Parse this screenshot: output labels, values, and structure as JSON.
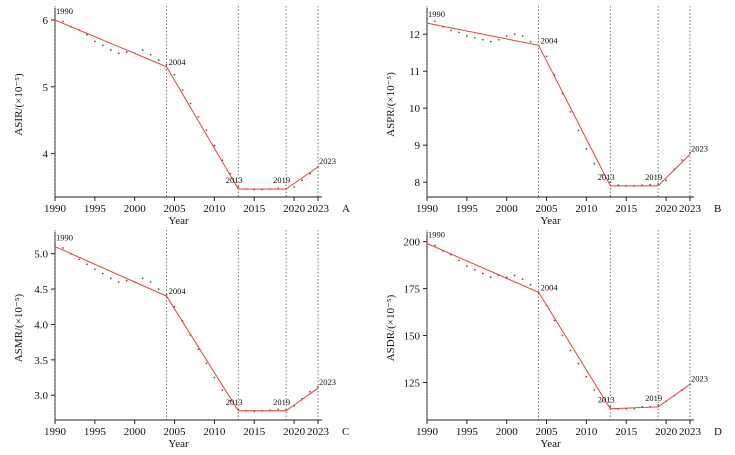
{
  "figure": {
    "colors": {
      "fit": "#e8413c",
      "points": "#5a5a5a",
      "axis": "#222222",
      "vline": "#555555"
    }
  },
  "chart_data": [
    {
      "type": "line",
      "panel": "A",
      "ylabel": "ASIR/(×10⁻⁵)",
      "xlabel": "Year",
      "xlim": [
        1990,
        2023
      ],
      "ylim": [
        3.35,
        6.12
      ],
      "xticks": [
        1990,
        1995,
        2000,
        2005,
        2010,
        2015,
        2020,
        2023
      ],
      "yticks": [
        4,
        5,
        6
      ],
      "joinpoints": [
        {
          "year": 1990,
          "value": 6.0,
          "label": "1990"
        },
        {
          "year": 2004,
          "value": 5.3,
          "label": "2004"
        },
        {
          "year": 2013,
          "value": 3.47,
          "label": "2013"
        },
        {
          "year": 2019,
          "value": 3.47,
          "label": "2019"
        },
        {
          "year": 2023,
          "value": 3.8,
          "label": "2023"
        }
      ],
      "observed": {
        "x": [
          1990,
          1991,
          1992,
          1993,
          1994,
          1995,
          1996,
          1997,
          1998,
          1999,
          2000,
          2001,
          2002,
          2003,
          2004,
          2005,
          2006,
          2007,
          2008,
          2009,
          2010,
          2011,
          2012,
          2013,
          2014,
          2015,
          2016,
          2017,
          2018,
          2019,
          2020,
          2021,
          2022,
          2023
        ],
        "y": [
          6.06,
          5.98,
          5.9,
          5.85,
          5.78,
          5.68,
          5.62,
          5.55,
          5.5,
          5.52,
          5.5,
          5.55,
          5.48,
          5.4,
          5.33,
          5.18,
          4.95,
          4.75,
          4.55,
          4.35,
          4.12,
          3.9,
          3.7,
          3.5,
          3.47,
          3.46,
          3.46,
          3.47,
          3.48,
          3.47,
          3.5,
          3.6,
          3.7,
          3.8
        ]
      }
    },
    {
      "type": "line",
      "panel": "B",
      "ylabel": "ASPR/(×10⁻⁵)",
      "xlabel": "Year",
      "xlim": [
        1990,
        2023
      ],
      "ylim": [
        7.6,
        12.6
      ],
      "xticks": [
        1990,
        1995,
        2000,
        2005,
        2010,
        2015,
        2020,
        2023
      ],
      "yticks": [
        8,
        9,
        10,
        11,
        12
      ],
      "joinpoints": [
        {
          "year": 1990,
          "value": 12.3,
          "label": "1990"
        },
        {
          "year": 2004,
          "value": 11.7,
          "label": "2004"
        },
        {
          "year": 2013,
          "value": 7.9,
          "label": "2013"
        },
        {
          "year": 2019,
          "value": 7.9,
          "label": "2019"
        },
        {
          "year": 2023,
          "value": 8.75,
          "label": "2023"
        }
      ],
      "observed": {
        "x": [
          1990,
          1991,
          1992,
          1993,
          1994,
          1995,
          1996,
          1997,
          1998,
          1999,
          2000,
          2001,
          2002,
          2003,
          2004,
          2005,
          2006,
          2007,
          2008,
          2009,
          2010,
          2011,
          2012,
          2013,
          2014,
          2015,
          2016,
          2017,
          2018,
          2019,
          2020,
          2021,
          2022,
          2023
        ],
        "y": [
          12.4,
          12.35,
          12.2,
          12.1,
          12.05,
          11.95,
          11.9,
          11.85,
          11.8,
          11.85,
          11.95,
          12.0,
          11.95,
          11.8,
          11.7,
          11.4,
          10.9,
          10.4,
          9.9,
          9.4,
          8.9,
          8.5,
          8.2,
          8.0,
          7.92,
          7.9,
          7.9,
          7.92,
          7.93,
          7.95,
          8.05,
          8.35,
          8.6,
          8.8
        ]
      }
    },
    {
      "type": "line",
      "panel": "C",
      "ylabel": "ASMR/(×10⁻⁵)",
      "xlabel": "Year",
      "xlim": [
        1990,
        2023
      ],
      "ylim": [
        2.65,
        5.25
      ],
      "xticks": [
        1990,
        1995,
        2000,
        2005,
        2010,
        2015,
        2020,
        2023
      ],
      "yticks": [
        3.0,
        3.5,
        4.0,
        4.5,
        5.0
      ],
      "ytick_labels": [
        "3.0",
        "3.5",
        "4.0",
        "4.5",
        "5.0"
      ],
      "joinpoints": [
        {
          "year": 1990,
          "value": 5.1,
          "label": "1990"
        },
        {
          "year": 2004,
          "value": 4.4,
          "label": "2004"
        },
        {
          "year": 2013,
          "value": 2.78,
          "label": "2013"
        },
        {
          "year": 2019,
          "value": 2.78,
          "label": "2019"
        },
        {
          "year": 2023,
          "value": 3.1,
          "label": "2023"
        }
      ],
      "observed": {
        "x": [
          1990,
          1991,
          1992,
          1993,
          1994,
          1995,
          1996,
          1997,
          1998,
          1999,
          2000,
          2001,
          2002,
          2003,
          2004,
          2005,
          2006,
          2007,
          2008,
          2009,
          2010,
          2011,
          2012,
          2013,
          2014,
          2015,
          2016,
          2017,
          2018,
          2019,
          2020,
          2021,
          2022,
          2023
        ],
        "y": [
          5.12,
          5.08,
          5.0,
          4.92,
          4.85,
          4.78,
          4.72,
          4.65,
          4.6,
          4.62,
          4.6,
          4.65,
          4.6,
          4.5,
          4.42,
          4.25,
          4.05,
          3.85,
          3.65,
          3.45,
          3.25,
          3.07,
          2.92,
          2.8,
          2.78,
          2.77,
          2.78,
          2.79,
          2.8,
          2.8,
          2.85,
          2.95,
          3.05,
          3.12
        ]
      }
    },
    {
      "type": "line",
      "panel": "D",
      "ylabel": "ASDR/(×10⁻⁵)",
      "xlabel": "Year",
      "xlim": [
        1990,
        2023
      ],
      "ylim": [
        105,
        203
      ],
      "xticks": [
        1990,
        1995,
        2000,
        2005,
        2010,
        2015,
        2020,
        2023
      ],
      "yticks": [
        125,
        150,
        175,
        200
      ],
      "joinpoints": [
        {
          "year": 1990,
          "value": 199,
          "label": "1990"
        },
        {
          "year": 2004,
          "value": 173,
          "label": "2004"
        },
        {
          "year": 2013,
          "value": 111,
          "label": "2013"
        },
        {
          "year": 2019,
          "value": 112,
          "label": "2019"
        },
        {
          "year": 2023,
          "value": 124,
          "label": "2023"
        }
      ],
      "observed": {
        "x": [
          1990,
          1991,
          1992,
          1993,
          1994,
          1995,
          1996,
          1997,
          1998,
          1999,
          2000,
          2001,
          2002,
          2003,
          2004,
          2005,
          2006,
          2007,
          2008,
          2009,
          2010,
          2011,
          2012,
          2013,
          2014,
          2015,
          2016,
          2017,
          2018,
          2019,
          2020,
          2021,
          2022,
          2023
        ],
        "y": [
          201,
          198,
          195,
          193,
          190,
          187,
          185,
          183,
          181,
          182,
          181,
          182,
          180,
          177,
          173,
          166,
          158,
          150,
          142,
          135,
          128,
          121,
          115,
          112,
          111,
          111,
          111,
          112,
          112,
          113,
          115,
          118,
          121,
          124
        ]
      }
    }
  ]
}
